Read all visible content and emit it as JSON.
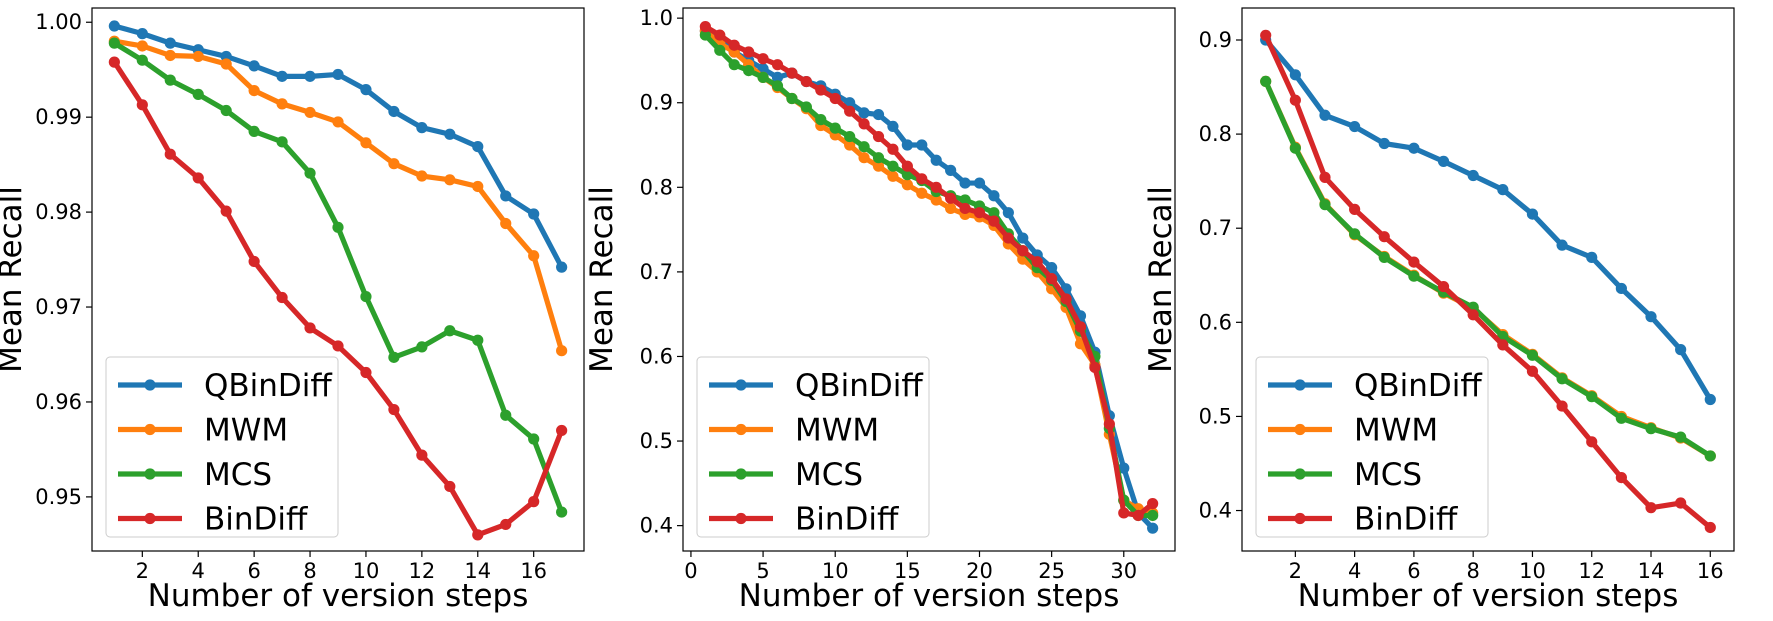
{
  "chart_data": [
    {
      "type": "line",
      "xlabel": "Number of version steps",
      "ylabel": "Mean Recall",
      "xlim": [
        0.2,
        17.8
      ],
      "ylim": [
        0.9443,
        1.0015
      ],
      "xticks": [
        2,
        4,
        6,
        8,
        10,
        12,
        14,
        16
      ],
      "xtick_labels": [
        "2",
        "4",
        "6",
        "8",
        "10",
        "12",
        "14",
        "16"
      ],
      "yticks": [
        0.95,
        0.96,
        0.97,
        0.98,
        0.99,
        1.0
      ],
      "ytick_labels": [
        "0.95",
        "0.96",
        "0.97",
        "0.98",
        "0.99",
        "1.00"
      ],
      "legend_position": "lower-left",
      "x": [
        1,
        2,
        3,
        4,
        5,
        6,
        7,
        8,
        9,
        10,
        11,
        12,
        13,
        14,
        15,
        16,
        17
      ],
      "series": [
        {
          "name": "QBinDiff",
          "color": "#1f77b4",
          "values": [
            0.9996,
            0.9988,
            0.9978,
            0.9971,
            0.9964,
            0.9954,
            0.9943,
            0.9943,
            0.9945,
            0.9929,
            0.9906,
            0.9889,
            0.9882,
            0.9869,
            0.9817,
            0.9798,
            0.9742
          ]
        },
        {
          "name": "MWM",
          "color": "#ff7f0e",
          "values": [
            0.998,
            0.9975,
            0.9965,
            0.9964,
            0.9956,
            0.9928,
            0.9914,
            0.9905,
            0.9895,
            0.9873,
            0.9851,
            0.9838,
            0.9834,
            0.9827,
            0.9788,
            0.9754,
            0.9654
          ]
        },
        {
          "name": "MCS",
          "color": "#2ca02c",
          "values": [
            0.9978,
            0.996,
            0.9939,
            0.9924,
            0.9907,
            0.9885,
            0.9874,
            0.9841,
            0.9784,
            0.9711,
            0.9647,
            0.9658,
            0.9675,
            0.9665,
            0.9586,
            0.9561,
            0.9484
          ]
        },
        {
          "name": "BinDiff",
          "color": "#d62728",
          "values": [
            0.9958,
            0.9913,
            0.9861,
            0.9836,
            0.9801,
            0.9748,
            0.971,
            0.9678,
            0.9659,
            0.9631,
            0.9592,
            0.9544,
            0.9511,
            0.946,
            0.9471,
            0.9495,
            0.957
          ]
        }
      ]
    },
    {
      "type": "line",
      "xlabel": "Number of version steps",
      "ylabel": "Mean Recall",
      "xlim": [
        -0.55,
        33.55
      ],
      "ylim": [
        0.37,
        1.012
      ],
      "xticks": [
        0,
        5,
        10,
        15,
        20,
        25,
        30
      ],
      "xtick_labels": [
        "0",
        "5",
        "10",
        "15",
        "20",
        "25",
        "30"
      ],
      "yticks": [
        0.4,
        0.5,
        0.6,
        0.7,
        0.8,
        0.9,
        1.0
      ],
      "ytick_labels": [
        "0.4",
        "0.5",
        "0.6",
        "0.7",
        "0.8",
        "0.9",
        "1.0"
      ],
      "legend_position": "lower-left",
      "x": [
        1,
        2,
        3,
        4,
        5,
        6,
        7,
        8,
        9,
        10,
        11,
        12,
        13,
        14,
        15,
        16,
        17,
        18,
        19,
        20,
        21,
        22,
        23,
        24,
        25,
        26,
        27,
        28,
        29,
        30,
        31,
        32
      ],
      "series": [
        {
          "name": "QBinDiff",
          "color": "#1f77b4",
          "values": [
            0.985,
            0.975,
            0.96,
            0.95,
            0.94,
            0.93,
            0.935,
            0.925,
            0.92,
            0.91,
            0.9,
            0.888,
            0.886,
            0.872,
            0.85,
            0.85,
            0.832,
            0.82,
            0.805,
            0.805,
            0.79,
            0.77,
            0.74,
            0.72,
            0.705,
            0.68,
            0.648,
            0.605,
            0.53,
            0.468,
            0.415,
            0.397
          ]
        },
        {
          "name": "MWM",
          "color": "#ff7f0e",
          "values": [
            0.985,
            0.97,
            0.96,
            0.945,
            0.93,
            0.918,
            0.905,
            0.893,
            0.873,
            0.862,
            0.85,
            0.835,
            0.825,
            0.813,
            0.803,
            0.793,
            0.785,
            0.775,
            0.768,
            0.765,
            0.755,
            0.733,
            0.715,
            0.7,
            0.68,
            0.658,
            0.615,
            0.59,
            0.508,
            0.43,
            0.42,
            0.415
          ]
        },
        {
          "name": "MCS",
          "color": "#2ca02c",
          "values": [
            0.98,
            0.962,
            0.945,
            0.938,
            0.93,
            0.92,
            0.905,
            0.895,
            0.88,
            0.87,
            0.86,
            0.848,
            0.835,
            0.825,
            0.815,
            0.808,
            0.795,
            0.79,
            0.785,
            0.778,
            0.77,
            0.745,
            0.725,
            0.705,
            0.69,
            0.665,
            0.63,
            0.6,
            0.515,
            0.43,
            0.412,
            0.412
          ]
        },
        {
          "name": "BinDiff",
          "color": "#d62728",
          "values": [
            0.99,
            0.98,
            0.968,
            0.96,
            0.952,
            0.945,
            0.935,
            0.925,
            0.915,
            0.905,
            0.89,
            0.875,
            0.86,
            0.845,
            0.825,
            0.81,
            0.8,
            0.787,
            0.775,
            0.77,
            0.76,
            0.74,
            0.725,
            0.712,
            0.692,
            0.668,
            0.635,
            0.587,
            0.52,
            0.415,
            0.412,
            0.426
          ]
        }
      ]
    },
    {
      "type": "line",
      "xlabel": "Number of version steps",
      "ylabel": "Mean Recall",
      "xlim": [
        0.2,
        16.8
      ],
      "ylim": [
        0.357,
        0.934
      ],
      "xticks": [
        2,
        4,
        6,
        8,
        10,
        12,
        14,
        16
      ],
      "xtick_labels": [
        "2",
        "4",
        "6",
        "8",
        "10",
        "12",
        "14",
        "16"
      ],
      "yticks": [
        0.4,
        0.5,
        0.6,
        0.7,
        0.8,
        0.9
      ],
      "ytick_labels": [
        "0.4",
        "0.5",
        "0.6",
        "0.7",
        "0.8",
        "0.9"
      ],
      "legend_position": "lower-left",
      "x": [
        1,
        2,
        3,
        4,
        5,
        6,
        7,
        8,
        9,
        10,
        11,
        12,
        13,
        14,
        15,
        16
      ],
      "series": [
        {
          "name": "QBinDiff",
          "color": "#1f77b4",
          "values": [
            0.9,
            0.863,
            0.82,
            0.808,
            0.79,
            0.785,
            0.771,
            0.756,
            0.741,
            0.715,
            0.682,
            0.669,
            0.636,
            0.606,
            0.571,
            0.518
          ]
        },
        {
          "name": "MWM",
          "color": "#ff7f0e",
          "values": [
            0.856,
            0.786,
            0.726,
            0.693,
            0.67,
            0.65,
            0.631,
            0.615,
            0.587,
            0.566,
            0.541,
            0.522,
            0.5,
            0.488,
            0.477,
            0.458
          ]
        },
        {
          "name": "MCS",
          "color": "#2ca02c",
          "values": [
            0.856,
            0.785,
            0.725,
            0.694,
            0.669,
            0.649,
            0.632,
            0.616,
            0.585,
            0.565,
            0.54,
            0.521,
            0.498,
            0.487,
            0.478,
            0.458
          ]
        },
        {
          "name": "BinDiff",
          "color": "#d62728",
          "values": [
            0.905,
            0.836,
            0.754,
            0.72,
            0.691,
            0.664,
            0.638,
            0.608,
            0.576,
            0.548,
            0.511,
            0.473,
            0.435,
            0.403,
            0.408,
            0.382
          ]
        }
      ]
    }
  ]
}
